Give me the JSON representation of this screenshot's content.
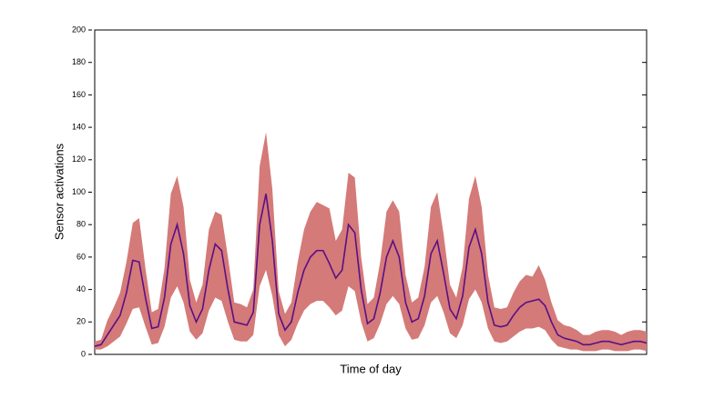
{
  "chart_data": {
    "type": "line",
    "ylabel": "Sensor activations",
    "xlabel": "Time of day",
    "categories": [
      null,
      null,
      null,
      null,
      null,
      null,
      null,
      null,
      null,
      null,
      null,
      null,
      null,
      null,
      null,
      null,
      null,
      null,
      null,
      null,
      null,
      null,
      null,
      null,
      null,
      null,
      null,
      null,
      null,
      null,
      null,
      null,
      null,
      null,
      null,
      null,
      null,
      null,
      null,
      null,
      null,
      null,
      null,
      null,
      null,
      null,
      null,
      null,
      null,
      null,
      null,
      null,
      null,
      null,
      null,
      null,
      null,
      null,
      null,
      null,
      null,
      null,
      null,
      null,
      null,
      null,
      null,
      null,
      null,
      null,
      null,
      null,
      null,
      null,
      null,
      null,
      null,
      null,
      null,
      null,
      null,
      null,
      null,
      null,
      null,
      null,
      null,
      null
    ],
    "series": [
      {
        "color": "#5a0f86",
        "values": [
          5,
          6,
          12,
          18,
          24,
          38,
          58,
          57,
          35,
          16,
          17,
          35,
          68,
          80,
          62,
          30,
          20,
          28,
          52,
          68,
          64,
          40,
          20,
          19,
          18,
          26,
          80,
          99,
          70,
          25,
          15,
          20,
          38,
          52,
          60,
          64,
          64,
          56,
          47,
          52,
          80,
          75,
          40,
          19,
          22,
          38,
          60,
          70,
          60,
          32,
          20,
          22,
          36,
          62,
          70,
          50,
          28,
          22,
          36,
          66,
          77,
          62,
          32,
          18,
          17,
          18,
          24,
          29,
          32,
          33,
          34,
          30,
          20,
          12,
          10,
          9,
          8,
          6,
          6,
          7,
          8,
          8,
          7,
          6,
          7,
          8,
          8,
          7
        ]
      }
    ],
    "band": {
      "color": "#d47a78",
      "upper": [
        8,
        9,
        21,
        29,
        38,
        57,
        81,
        84,
        53,
        26,
        28,
        53,
        99,
        110,
        91,
        46,
        32,
        43,
        77,
        88,
        86,
        60,
        32,
        31,
        29,
        40,
        116,
        137,
        102,
        39,
        25,
        32,
        57,
        77,
        88,
        94,
        92,
        90,
        70,
        77,
        112,
        109,
        60,
        31,
        35,
        57,
        88,
        95,
        88,
        49,
        32,
        35,
        54,
        91,
        100,
        74,
        43,
        35,
        54,
        96,
        110,
        91,
        49,
        29,
        28,
        29,
        38,
        45,
        49,
        48,
        55,
        46,
        32,
        21,
        18,
        17,
        15,
        12,
        12,
        14,
        15,
        15,
        14,
        12,
        14,
        15,
        15,
        14
      ],
      "lower": [
        3,
        3,
        5,
        8,
        11,
        19,
        28,
        29,
        17,
        6,
        7,
        17,
        35,
        42,
        32,
        14,
        9,
        13,
        27,
        35,
        33,
        20,
        9,
        8,
        8,
        12,
        42,
        52,
        36,
        12,
        5,
        9,
        19,
        27,
        31,
        33,
        33,
        29,
        24,
        27,
        42,
        39,
        20,
        8,
        10,
        19,
        31,
        36,
        31,
        16,
        9,
        10,
        18,
        32,
        36,
        26,
        13,
        10,
        18,
        34,
        40,
        32,
        16,
        8,
        7,
        8,
        11,
        14,
        16,
        16,
        17,
        15,
        9,
        5,
        4,
        3,
        3,
        2,
        2,
        2,
        3,
        3,
        2,
        2,
        2,
        3,
        3,
        2
      ]
    },
    "ylim": [
      0,
      200
    ],
    "yticks": [
      0,
      20,
      40,
      60,
      80,
      100,
      120,
      140,
      160,
      180,
      200
    ]
  }
}
